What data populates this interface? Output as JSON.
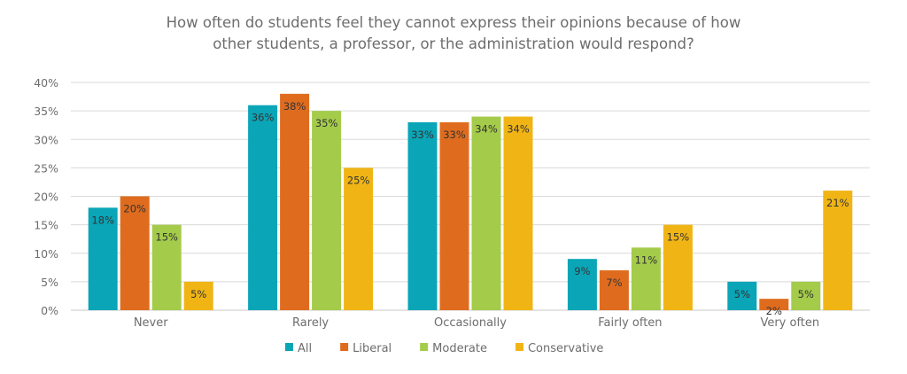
{
  "chart_data": {
    "type": "bar",
    "title_lines": [
      "How often do students feel they cannot express their opinions because of how",
      "other students, a professor, or the administration would respond?"
    ],
    "categories": [
      "Never",
      "Rarely",
      "Occasionally",
      "Fairly often",
      "Very often"
    ],
    "series": [
      {
        "name": "All",
        "color": "#0aa5b7",
        "values": [
          18,
          36,
          33,
          9,
          5
        ]
      },
      {
        "name": "Liberal",
        "color": "#df6c1e",
        "values": [
          20,
          38,
          33,
          7,
          2
        ]
      },
      {
        "name": "Moderate",
        "color": "#a4cb4a",
        "values": [
          15,
          35,
          34,
          11,
          5
        ]
      },
      {
        "name": "Conservative",
        "color": "#f0b515",
        "values": [
          5,
          25,
          34,
          15,
          21
        ]
      }
    ],
    "ylim": [
      0,
      40
    ],
    "yticks": [
      0,
      5,
      10,
      15,
      20,
      25,
      30,
      35,
      40
    ],
    "ytick_format": "%",
    "grid": true,
    "legend": "bottom",
    "data_labels": true
  }
}
